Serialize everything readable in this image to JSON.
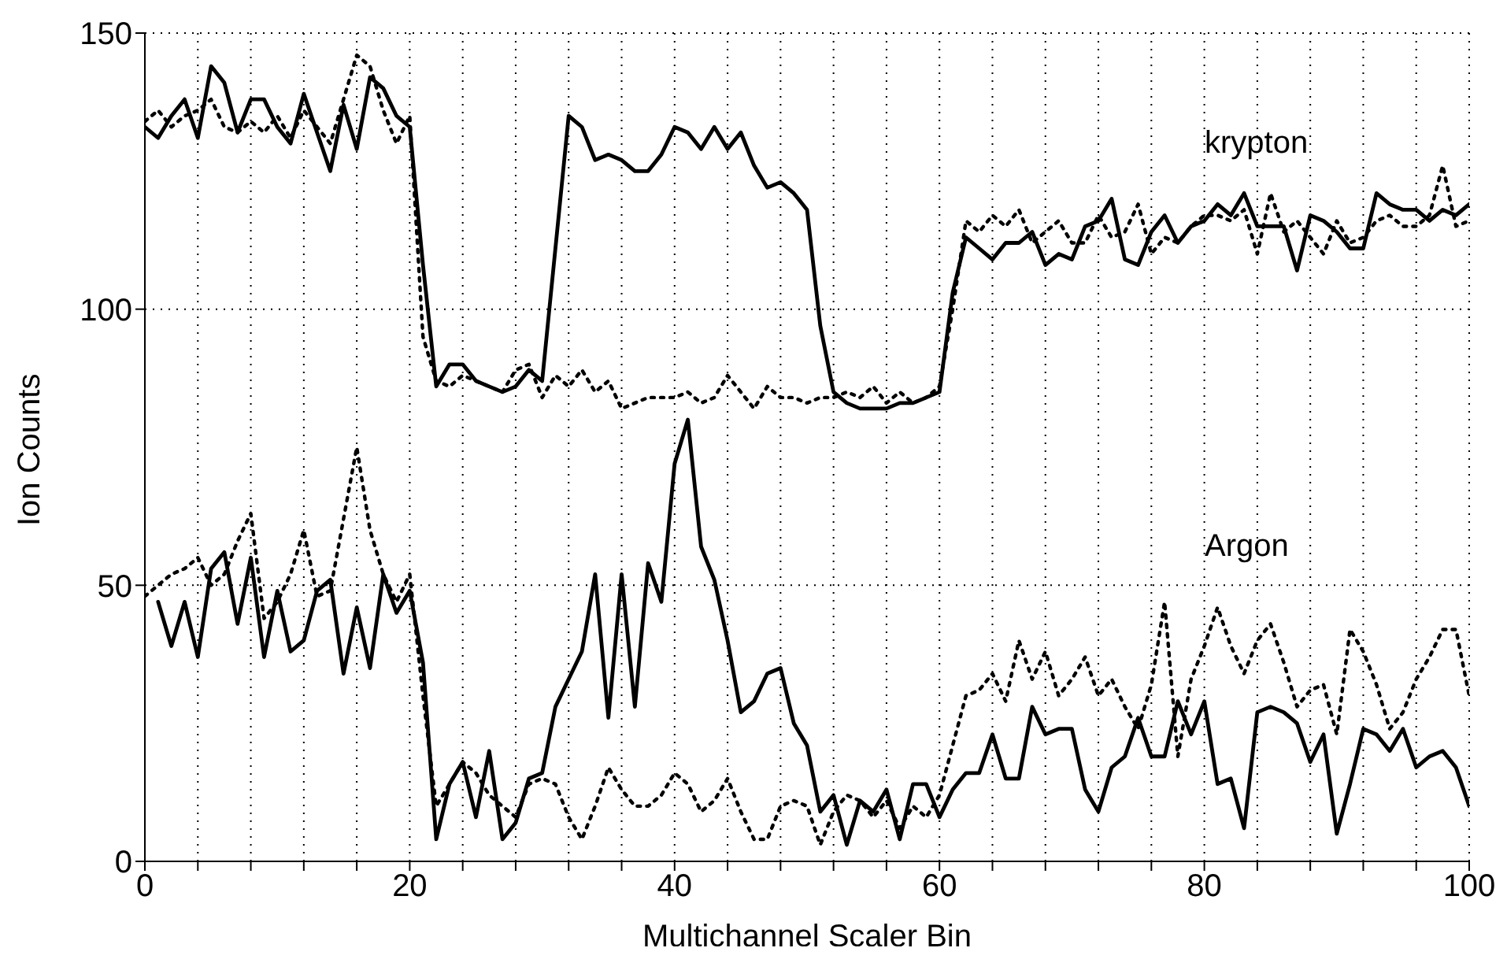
{
  "chart_data": {
    "type": "line",
    "xlabel": "Multichannel Scaler Bin",
    "ylabel": "Ion Counts",
    "x": [
      0,
      1,
      2,
      3,
      4,
      5,
      6,
      7,
      8,
      9,
      10,
      11,
      12,
      13,
      14,
      15,
      16,
      17,
      18,
      19,
      20,
      21,
      22,
      23,
      24,
      25,
      26,
      27,
      28,
      29,
      30,
      31,
      32,
      33,
      34,
      35,
      36,
      37,
      38,
      39,
      40,
      41,
      42,
      43,
      44,
      45,
      46,
      47,
      48,
      49,
      50,
      51,
      52,
      53,
      54,
      55,
      56,
      57,
      58,
      59,
      60,
      61,
      62,
      63,
      64,
      65,
      66,
      67,
      68,
      69,
      70,
      71,
      72,
      73,
      74,
      75,
      76,
      77,
      78,
      79,
      80,
      81,
      82,
      83,
      84,
      85,
      86,
      87,
      88,
      89,
      90,
      91,
      92,
      93,
      94,
      95,
      96,
      97,
      98,
      99,
      100
    ],
    "series": [
      {
        "color": "#000000",
        "line_style": "solid",
        "values": [
          133,
          131,
          135,
          138,
          131,
          144,
          141,
          132,
          138,
          138,
          133,
          130,
          139,
          132,
          125,
          137,
          129,
          142,
          140,
          135,
          133,
          108,
          86,
          90,
          90,
          87,
          86,
          85,
          86,
          89,
          87,
          111,
          135,
          133,
          127,
          128,
          127,
          125,
          125,
          128,
          133,
          132,
          129,
          133,
          129,
          132,
          126,
          122,
          123,
          121,
          118,
          97,
          85,
          83,
          82,
          82,
          82,
          83,
          83,
          84,
          85,
          103,
          113,
          111,
          109,
          112,
          112,
          114,
          108,
          110,
          109,
          115,
          116,
          120,
          109,
          108,
          114,
          117,
          112,
          115,
          116,
          119,
          117,
          121,
          115,
          115,
          115,
          107,
          117,
          116,
          114,
          111,
          111,
          121,
          119,
          118,
          118,
          116,
          118,
          117,
          119
        ]
      },
      {
        "color": "#000000",
        "line_style": "dotted",
        "values": [
          134,
          136,
          133,
          135,
          136,
          138,
          133,
          132,
          134,
          132,
          135,
          131,
          136,
          133,
          130,
          138,
          146,
          144,
          136,
          130,
          135,
          95,
          87,
          86,
          88,
          87,
          86,
          85,
          89,
          90,
          84,
          88,
          86,
          89,
          85,
          87,
          82,
          83,
          84,
          84,
          84,
          85,
          83,
          84,
          88,
          85,
          82,
          86,
          84,
          84,
          83,
          84,
          84,
          85,
          84,
          86,
          83,
          85,
          83,
          84,
          86,
          100,
          116,
          114,
          117,
          115,
          118,
          112,
          114,
          116,
          112,
          112,
          117,
          113,
          114,
          119,
          110,
          113,
          112,
          115,
          117,
          117,
          116,
          118,
          110,
          121,
          114,
          116,
          113,
          110,
          116,
          112,
          113,
          116,
          117,
          115,
          115,
          117,
          126,
          115,
          116
        ]
      },
      {
        "color": "#000000",
        "line_style": "solid",
        "values": [
          null,
          47,
          39,
          47,
          37,
          53,
          56,
          43,
          55,
          37,
          49,
          38,
          40,
          49,
          51,
          34,
          46,
          35,
          52,
          45,
          49,
          36,
          4,
          14,
          18,
          8,
          20,
          4,
          7,
          15,
          16,
          28,
          33,
          38,
          52,
          26,
          52,
          28,
          54,
          47,
          72,
          80,
          57,
          51,
          40,
          27,
          29,
          34,
          35,
          25,
          21,
          9,
          12,
          3,
          11,
          9,
          13,
          4,
          14,
          14,
          8,
          13,
          16,
          16,
          23,
          15,
          15,
          28,
          23,
          24,
          24,
          13,
          9,
          17,
          19,
          26,
          19,
          19,
          29,
          23,
          29,
          14,
          15,
          6,
          27,
          28,
          27,
          25,
          18,
          23,
          5,
          14,
          24,
          23,
          20,
          24,
          17,
          19,
          20,
          17,
          10
        ]
      },
      {
        "color": "#000000",
        "line_style": "dotted",
        "values": [
          48,
          50,
          52,
          53,
          55,
          50,
          52,
          58,
          63,
          44,
          47,
          52,
          60,
          48,
          49,
          62,
          75,
          60,
          52,
          47,
          52,
          30,
          10,
          14,
          18,
          16,
          12,
          10,
          8,
          14,
          15,
          14,
          8,
          4,
          10,
          17,
          13,
          10,
          10,
          12,
          16,
          14,
          9,
          11,
          15,
          9,
          4,
          4,
          10,
          11,
          10,
          3,
          9,
          12,
          11,
          8,
          11,
          6,
          10,
          8,
          12,
          21,
          30,
          31,
          34,
          29,
          40,
          33,
          38,
          30,
          33,
          37,
          30,
          33,
          28,
          24,
          32,
          47,
          19,
          33,
          39,
          46,
          39,
          34,
          40,
          43,
          36,
          28,
          31,
          32,
          23,
          42,
          38,
          32,
          24,
          27,
          33,
          37,
          42,
          42,
          30
        ]
      }
    ],
    "xlim": [
      0,
      100
    ],
    "xticks": [
      0,
      {
        "value": 4,
        "label": null
      },
      {
        "value": 8,
        "label": null
      },
      {
        "value": 12,
        "label": null
      },
      {
        "value": 16,
        "label": null
      },
      20,
      {
        "value": 24,
        "label": null
      },
      {
        "value": 28,
        "label": null
      },
      {
        "value": 32,
        "label": null
      },
      {
        "value": 36,
        "label": null
      },
      40,
      {
        "value": 44,
        "label": null
      },
      {
        "value": 48,
        "label": null
      },
      {
        "value": 52,
        "label": null
      },
      {
        "value": 56,
        "label": null
      },
      60,
      {
        "value": 64,
        "label": null
      },
      {
        "value": 68,
        "label": null
      },
      {
        "value": 72,
        "label": null
      },
      {
        "value": 76,
        "label": null
      },
      80,
      {
        "value": 84,
        "label": null
      },
      {
        "value": 88,
        "label": null
      },
      {
        "value": 92,
        "label": null
      },
      {
        "value": 96,
        "label": null
      },
      100
    ],
    "ylim": [
      0,
      150
    ],
    "yticks": [
      0,
      50,
      100,
      150
    ],
    "grid": true,
    "marker": "none",
    "annotations": [
      "krypton",
      "Argon"
    ]
  }
}
